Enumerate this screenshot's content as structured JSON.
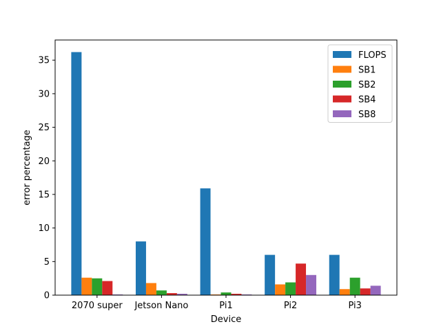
{
  "chart_data": {
    "type": "bar",
    "title": "",
    "xlabel": "Device",
    "ylabel": "error percentage",
    "categories": [
      "2070 super",
      "Jetson Nano",
      "Pi1",
      "Pi2",
      "Pi3"
    ],
    "series": [
      {
        "name": "FLOPS",
        "color": "#1f77b4",
        "values": [
          36.2,
          8.0,
          15.9,
          6.0,
          6.0
        ]
      },
      {
        "name": "SB1",
        "color": "#ff7f0e",
        "values": [
          2.6,
          1.8,
          0.1,
          1.6,
          0.9
        ]
      },
      {
        "name": "SB2",
        "color": "#2ca02c",
        "values": [
          2.5,
          0.7,
          0.4,
          1.9,
          2.6
        ]
      },
      {
        "name": "SB4",
        "color": "#d62728",
        "values": [
          2.1,
          0.3,
          0.2,
          4.7,
          1.0
        ]
      },
      {
        "name": "SB8",
        "color": "#9467bd",
        "values": [
          0.1,
          0.2,
          0.1,
          3.0,
          1.4
        ]
      }
    ],
    "ylim": [
      0,
      38.0
    ],
    "yticks": [
      "0",
      "5",
      "10",
      "15",
      "20",
      "25",
      "30",
      "35"
    ],
    "grid": false,
    "legend_position": "top-right"
  }
}
